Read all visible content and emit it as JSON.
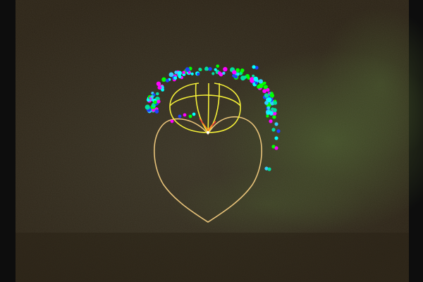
{
  "scene": {
    "colors": {
      "frame": "#0d0d0d",
      "background": "#2d2518",
      "background_mid": "#353123",
      "grass": "#3a4a22",
      "grass_light": "#44532a",
      "heart_outline": "#e8c37a",
      "inner_curves": "#f4ef38",
      "arrow_red": "#ff3030",
      "arrow_orange": "#ff8a20"
    },
    "dot_palette": [
      "#00ffff",
      "#00ff00",
      "#ff00ff",
      "#33ccff",
      "#00e0a0",
      "#2040ff"
    ],
    "icons": {
      "heart": "heart-outline-icon",
      "petal_curves": "yellow-curves-icon",
      "dots": "colored-dot-cluster-icon"
    }
  }
}
